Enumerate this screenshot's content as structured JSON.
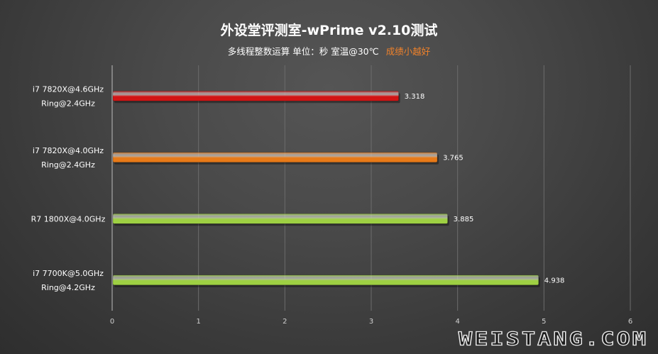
{
  "title": "外设堂评测室-wPrime v2.10测试",
  "subtitle": "多线程整数运算  单位：秒  室温@30℃",
  "note": "成绩小越好",
  "watermark": "WEISTANG.COM",
  "chart_data": {
    "type": "bar",
    "orientation": "horizontal",
    "categories": [
      [
        "i7 7820X@4.6GHz",
        "Ring@2.4GHz"
      ],
      [
        "i7 7820X@4.0GHz",
        "Ring@2.4GHz"
      ],
      [
        "R7 1800X@4.0GHz"
      ],
      [
        "i7 7700K@5.0GHz",
        "Ring@4.2GHz"
      ]
    ],
    "values": [
      3.318,
      3.765,
      3.885,
      4.938
    ],
    "value_labels": [
      "3.318",
      "3.765",
      "3.885",
      "4.938"
    ],
    "bar_colors": [
      "#d21414",
      "#e87a18",
      "#9ed043",
      "#9ed043"
    ],
    "xlim": [
      0,
      6
    ],
    "xticks": [
      0,
      1,
      2,
      3,
      4,
      5,
      6
    ],
    "grid": true,
    "xlabel": "",
    "ylabel": ""
  }
}
